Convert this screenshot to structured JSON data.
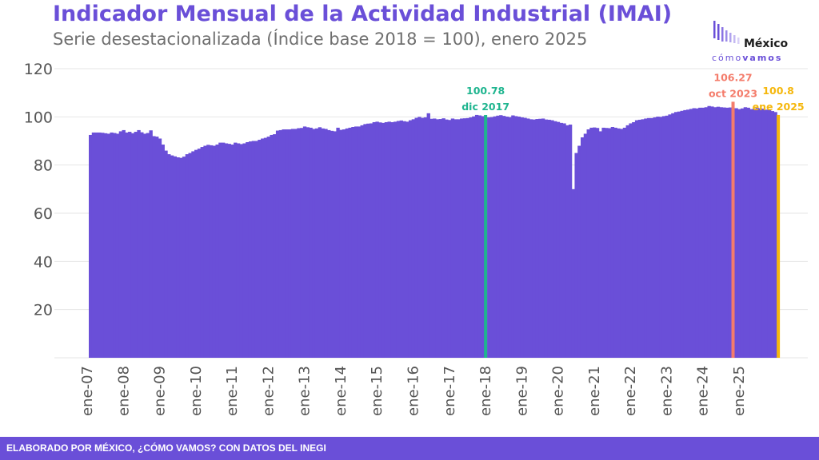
{
  "header": {
    "title": "Indicador Mensual de la Actividad Industrial (IMAI)",
    "subtitle": "Serie desestacionalizada (Índice base 2018 = 100), enero 2025"
  },
  "logo": {
    "word": "México",
    "sub_light": "cómo",
    "sub_bold": "vamos"
  },
  "footer": {
    "text": "ELABORADO POR MÉXICO, ¿CÓMO VAMOS? CON DATOS DEL INEGI"
  },
  "colors": {
    "bar": "#6a4fd8",
    "highlight_1": "#1fb58f",
    "highlight_2": "#f47c6b",
    "highlight_3": "#f5b70c",
    "title": "#6a4fd8"
  },
  "chart_data": {
    "type": "bar",
    "x_start": "ene-07",
    "x_end": "ene-25",
    "ylim": [
      0,
      120
    ],
    "yticks": [
      20,
      40,
      60,
      80,
      100,
      120
    ],
    "grid": true,
    "xticks": [
      "ene-07",
      "ene-08",
      "ene-09",
      "ene-10",
      "ene-11",
      "ene-12",
      "ene-13",
      "ene-14",
      "ene-15",
      "ene-16",
      "ene-17",
      "ene-18",
      "ene-19",
      "ene-20",
      "ene-21",
      "ene-22",
      "ene-23",
      "ene-24",
      "ene-25"
    ],
    "yearly_values": [
      [
        92.5,
        93.5,
        93.5,
        93.5,
        93.4,
        93.2,
        93.0,
        93.5,
        93.3,
        93.0,
        94.0,
        94.5
      ],
      [
        93.5,
        93.8,
        93.2,
        93.8,
        94.5,
        93.6,
        93.0,
        93.3,
        94.4,
        92.0,
        91.8,
        91.0
      ],
      [
        88.5,
        86.0,
        84.5,
        84.0,
        83.6,
        83.2,
        83.0,
        83.5,
        84.5,
        85.0,
        85.7,
        86.3
      ],
      [
        86.8,
        87.5,
        88.0,
        88.4,
        88.2,
        88.0,
        88.5,
        89.3,
        89.3,
        89.0,
        88.8,
        88.5
      ],
      [
        89.3,
        89.0,
        88.7,
        89.0,
        89.5,
        89.8,
        90.0,
        90.0,
        90.5,
        91.0,
        91.3,
        91.8
      ],
      [
        92.5,
        92.8,
        94.3,
        94.5,
        94.8,
        94.8,
        94.8,
        95.0,
        95.0,
        95.3,
        95.4,
        96.0
      ],
      [
        95.7,
        95.5,
        95.0,
        95.2,
        95.7,
        95.2,
        95.0,
        94.5,
        94.2,
        94.0,
        95.5,
        94.6
      ],
      [
        94.8,
        95.2,
        95.5,
        95.8,
        96.0,
        96.0,
        96.5,
        97.0,
        97.2,
        97.3,
        97.8,
        98.0
      ],
      [
        97.7,
        97.5,
        97.8,
        98.0,
        97.8,
        98.0,
        98.3,
        98.5,
        98.2,
        98.0,
        98.6,
        99.0
      ],
      [
        99.6,
        100.0,
        99.6,
        99.8,
        101.5,
        99.2,
        99.3,
        99.0,
        99.1,
        99.4,
        98.9,
        98.7
      ],
      [
        99.3,
        99.0,
        99.0,
        99.3,
        99.4,
        99.5,
        99.8,
        100.2,
        100.8,
        100.6,
        100.3,
        100.78
      ],
      [
        99.8,
        99.9,
        100.2,
        100.5,
        100.7,
        100.4,
        100.1,
        99.9,
        100.6,
        100.3,
        100.1,
        99.8
      ],
      [
        99.6,
        99.3,
        99.0,
        98.9,
        99.1,
        99.2,
        99.3,
        98.9,
        98.8,
        98.6,
        98.2,
        97.9
      ],
      [
        97.5,
        97.3,
        96.5,
        96.8,
        70.0,
        85.0,
        88.0,
        91.5,
        93.0,
        94.8,
        95.5,
        95.6
      ],
      [
        95.4,
        94.0,
        95.5,
        95.4,
        95.3,
        95.8,
        95.5,
        95.2,
        95.0,
        95.5,
        96.5,
        97.3
      ],
      [
        97.8,
        98.6,
        98.8,
        99.0,
        99.3,
        99.5,
        99.5,
        99.8,
        100.1,
        100.0,
        100.3,
        100.5
      ],
      [
        101.0,
        101.5,
        102.0,
        102.2,
        102.5,
        102.8,
        103.0,
        103.3,
        103.6,
        103.5,
        103.8,
        103.8
      ],
      [
        104.0,
        104.5,
        104.3,
        104.0,
        104.2,
        104.0,
        103.9,
        103.8,
        103.9,
        106.27,
        103.6,
        103.2
      ],
      [
        103.5,
        104.0,
        103.8,
        103.2,
        103.5,
        103.7,
        103.5,
        103.4,
        103.0,
        102.8,
        102.4,
        102.0
      ],
      [
        100.8
      ]
    ],
    "highlights": [
      {
        "year_index": 10,
        "month_index": 11,
        "value_label": "100.78",
        "date_label": "dic 2017"
      },
      {
        "year_index": 17,
        "month_index": 9,
        "value_label": "106.27",
        "date_label": "oct 2023"
      },
      {
        "year_index": 19,
        "month_index": 0,
        "value_label": "100.8",
        "date_label": "ene 2025"
      }
    ]
  }
}
